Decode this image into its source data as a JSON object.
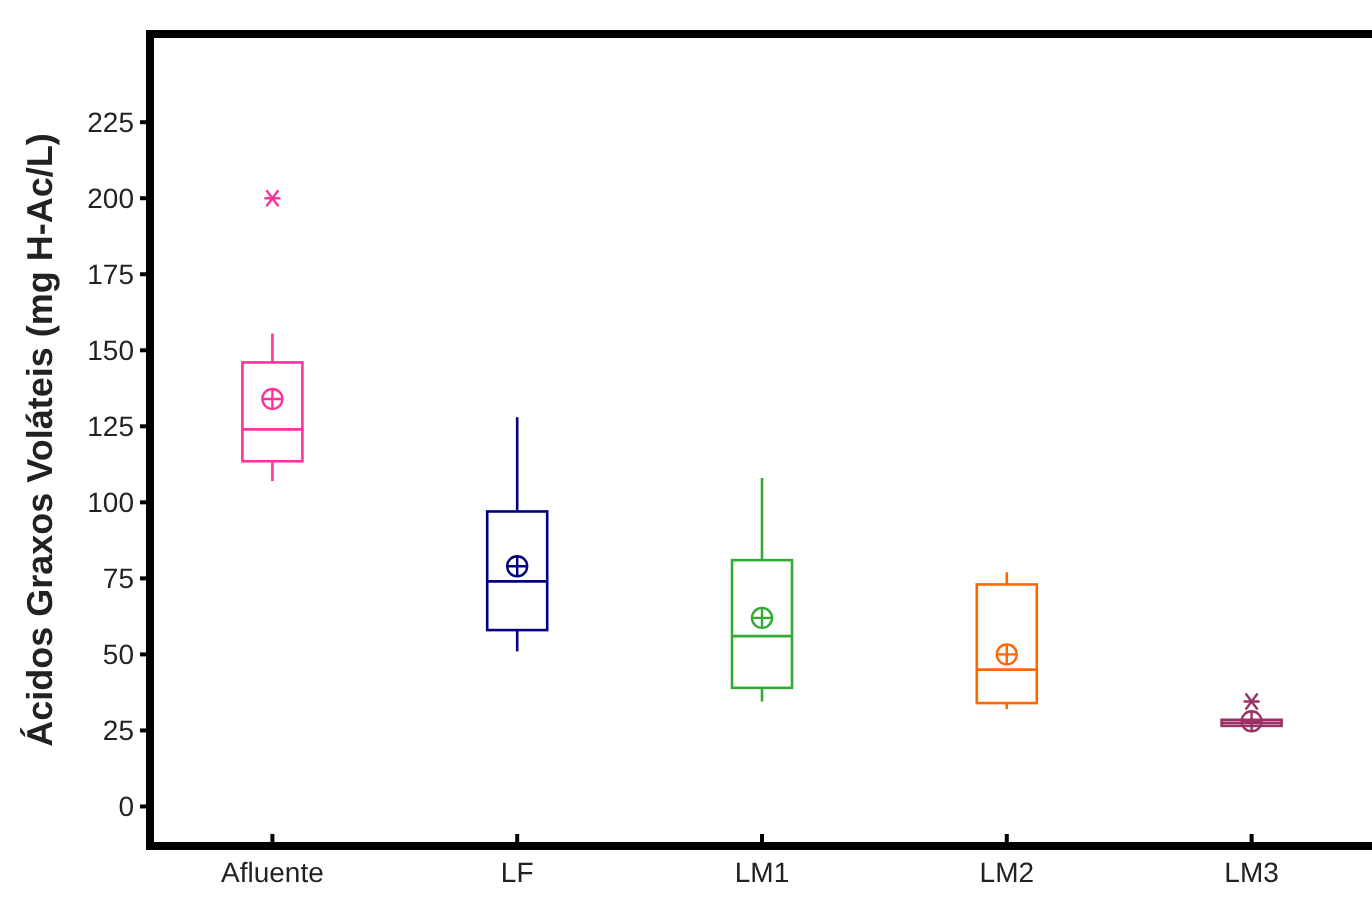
{
  "chart_data": {
    "type": "box",
    "ylabel": "Ácidos Graxos Voláteis (mg H-Ac/L)",
    "categories": [
      "Afluente",
      "LF",
      "LM1",
      "LM2",
      "LM3"
    ],
    "colors": [
      "#ff3399",
      "#000080",
      "#33aa33",
      "#ff6600",
      "#993366"
    ],
    "boxes": [
      {
        "low": 107,
        "q1": 113.5,
        "median": 124,
        "q3": 146,
        "high": 155.5,
        "mean": 134,
        "outliers": [
          200
        ]
      },
      {
        "low": 51,
        "q1": 58,
        "median": 74,
        "q3": 97,
        "high": 128,
        "mean": 79
      },
      {
        "low": 34.5,
        "q1": 39,
        "median": 56,
        "q3": 81,
        "high": 108,
        "mean": 62
      },
      {
        "low": 32,
        "q1": 34,
        "median": 45,
        "q3": 73,
        "high": 77,
        "mean": 50
      },
      {
        "low": 26,
        "q1": 26.5,
        "median": 27.5,
        "q3": 28.5,
        "high": 29,
        "mean": 28,
        "outliers": [
          34.5
        ]
      }
    ],
    "ylim": [
      -13,
      254
    ],
    "yticks": [
      0,
      25,
      50,
      75,
      100,
      125,
      150,
      175,
      200,
      225
    ],
    "grid": false
  }
}
